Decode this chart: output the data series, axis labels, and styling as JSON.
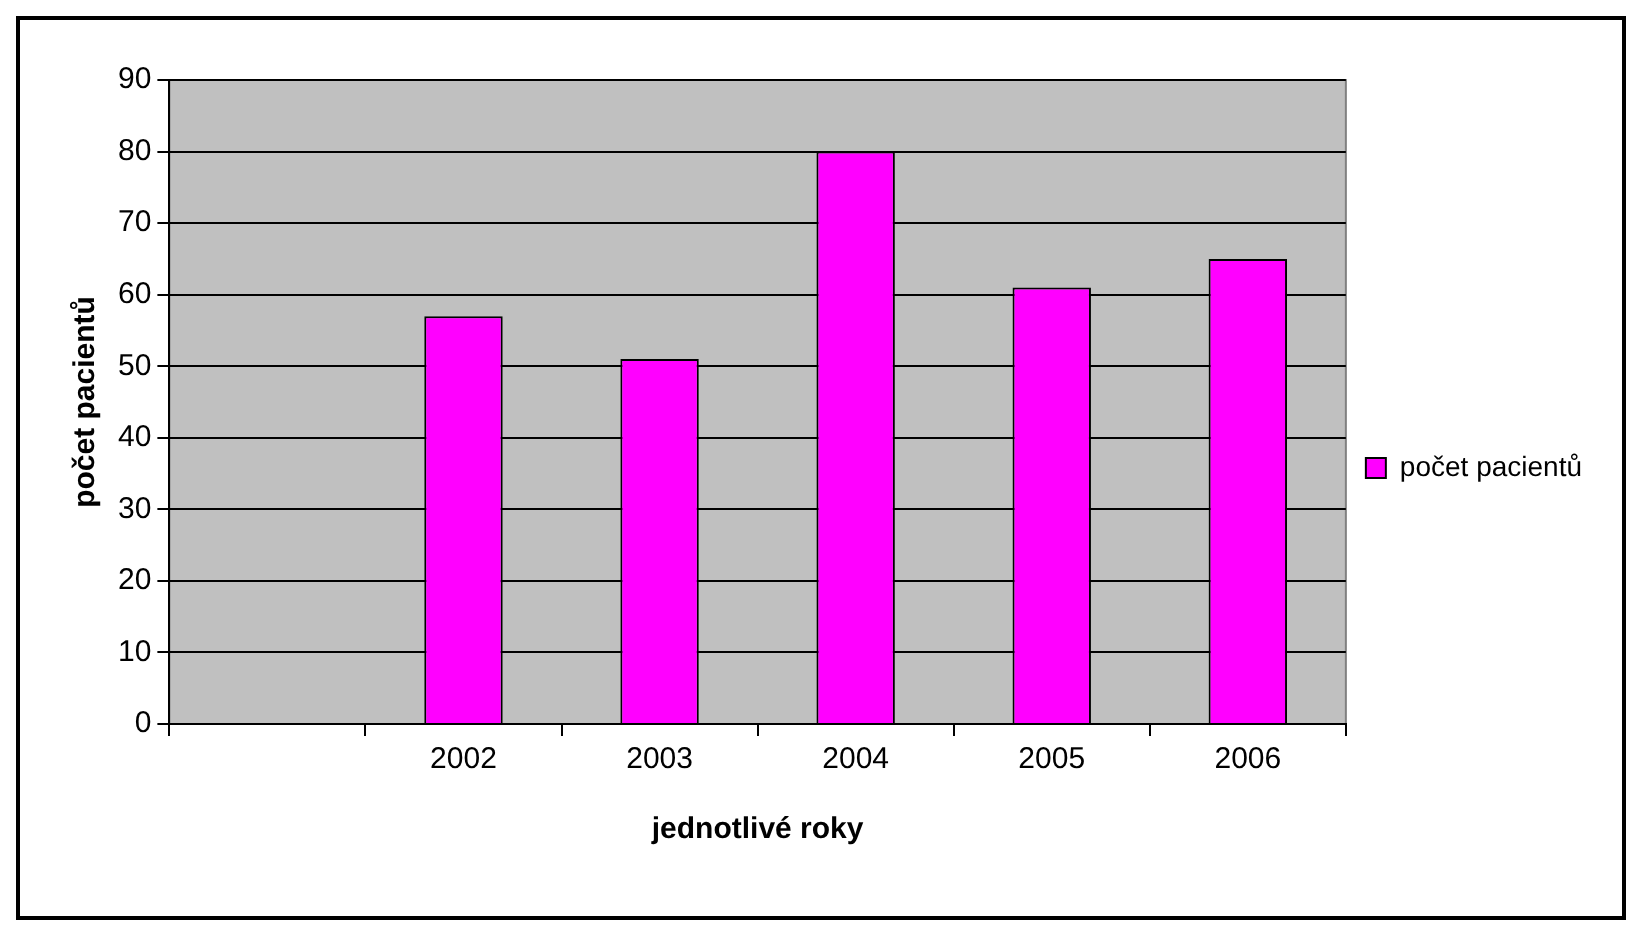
{
  "chart_data": {
    "type": "bar",
    "xlabel": "jednotlivé roky",
    "ylabel": "počet pacientů",
    "categories": [
      null,
      "2002",
      "2003",
      "2004",
      "2005",
      "2006"
    ],
    "series": [
      {
        "name": "počet pacientů",
        "color": "#ff00ff",
        "values": [
          null,
          57,
          51,
          80,
          61,
          65
        ]
      }
    ],
    "ylim": [
      0,
      90
    ],
    "yticks": [
      0,
      10,
      20,
      30,
      40,
      50,
      60,
      70,
      80,
      90
    ],
    "grid": "y",
    "legend": "right"
  }
}
